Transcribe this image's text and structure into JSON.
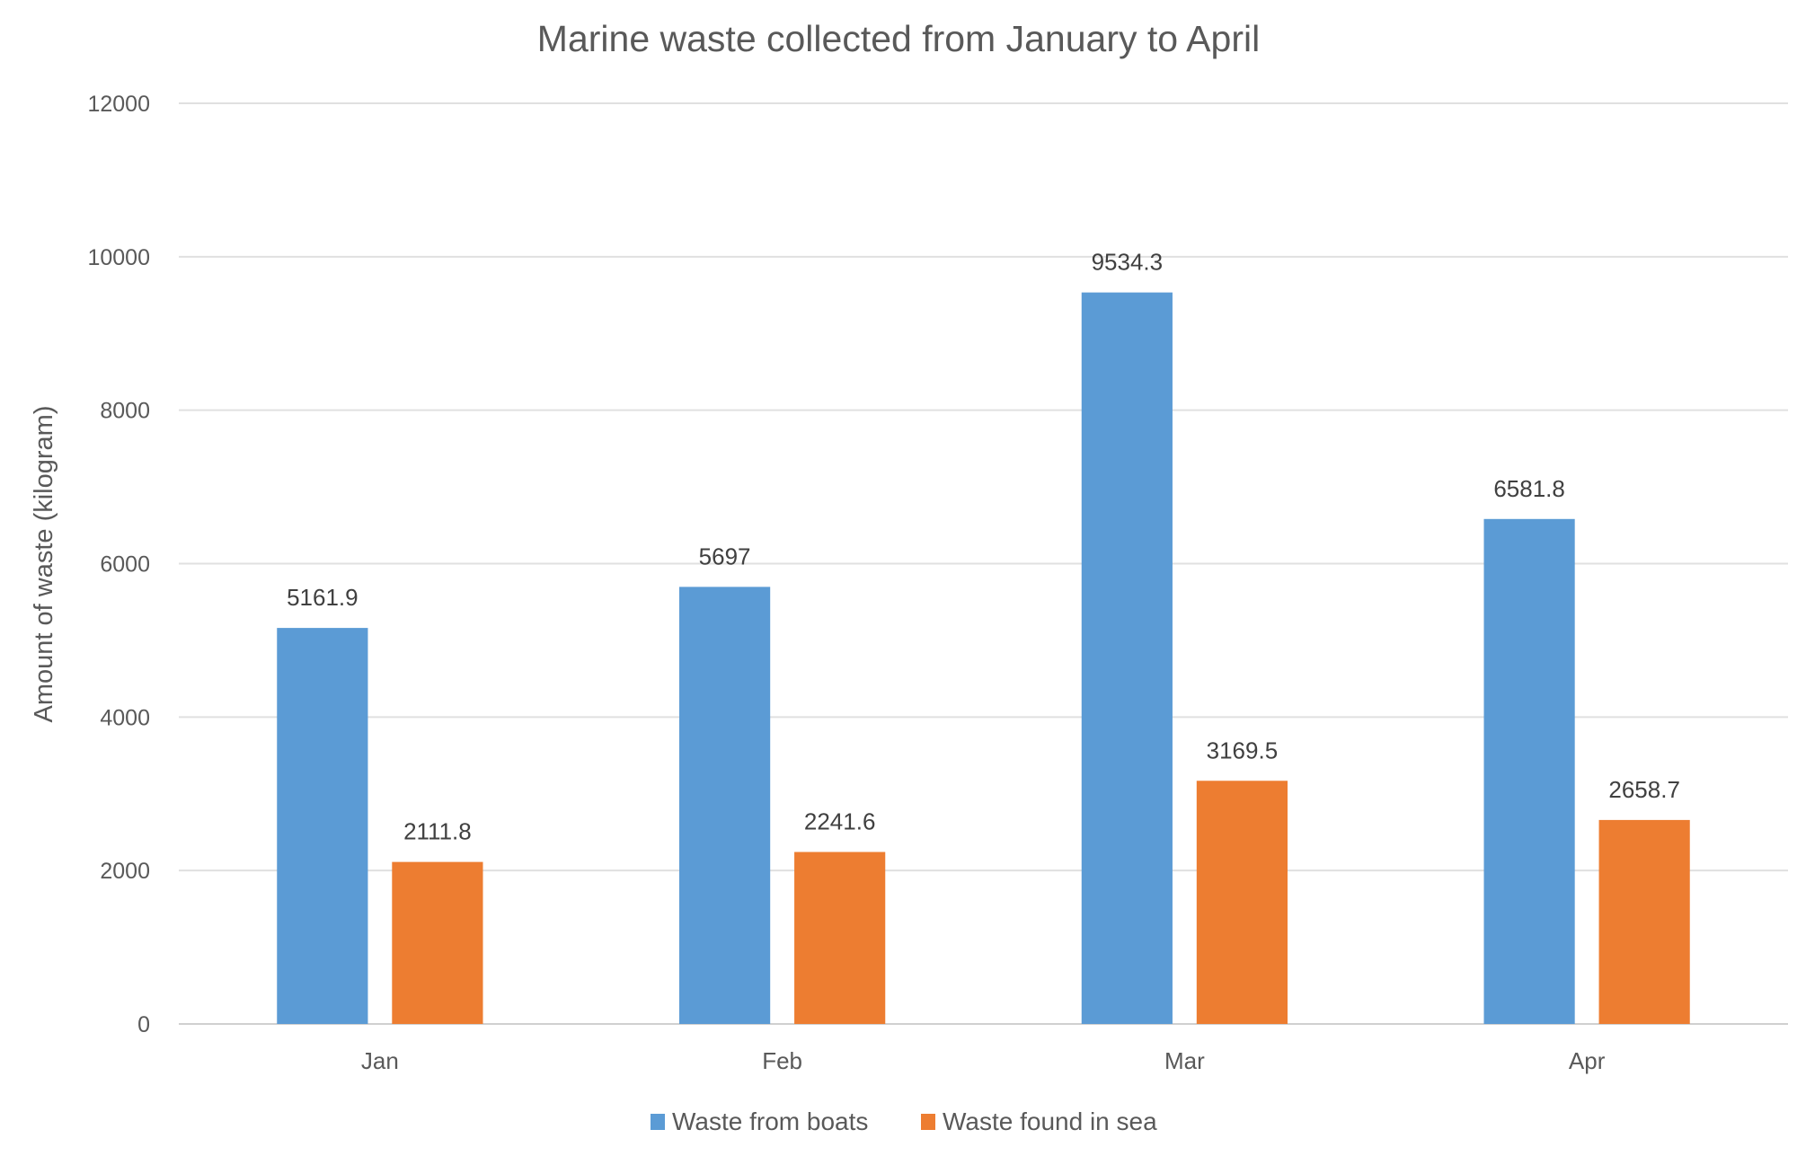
{
  "chart_data": {
    "type": "bar",
    "title": "Marine waste collected from January to April",
    "xlabel": "",
    "ylabel": "Amount of waste (kilogram)",
    "categories": [
      "Jan",
      "Feb",
      "Mar",
      "Apr"
    ],
    "series": [
      {
        "name": "Waste from boats",
        "values": [
          5161.9,
          5697,
          9534.3,
          6581.8
        ],
        "labels": [
          "5161.9",
          "5697",
          "9534.3",
          "6581.8"
        ],
        "color": "#5B9BD5"
      },
      {
        "name": "Waste found in sea",
        "values": [
          2111.8,
          2241.6,
          3169.5,
          2658.7
        ],
        "labels": [
          "2111.8",
          "2241.6",
          "3169.5",
          "2658.7"
        ],
        "color": "#ED7D31"
      }
    ],
    "ylim": [
      0,
      12000
    ],
    "yticks": [
      "0",
      "2000",
      "4000",
      "6000",
      "8000",
      "10000",
      "12000"
    ],
    "grid": true,
    "legend": "bottom"
  }
}
